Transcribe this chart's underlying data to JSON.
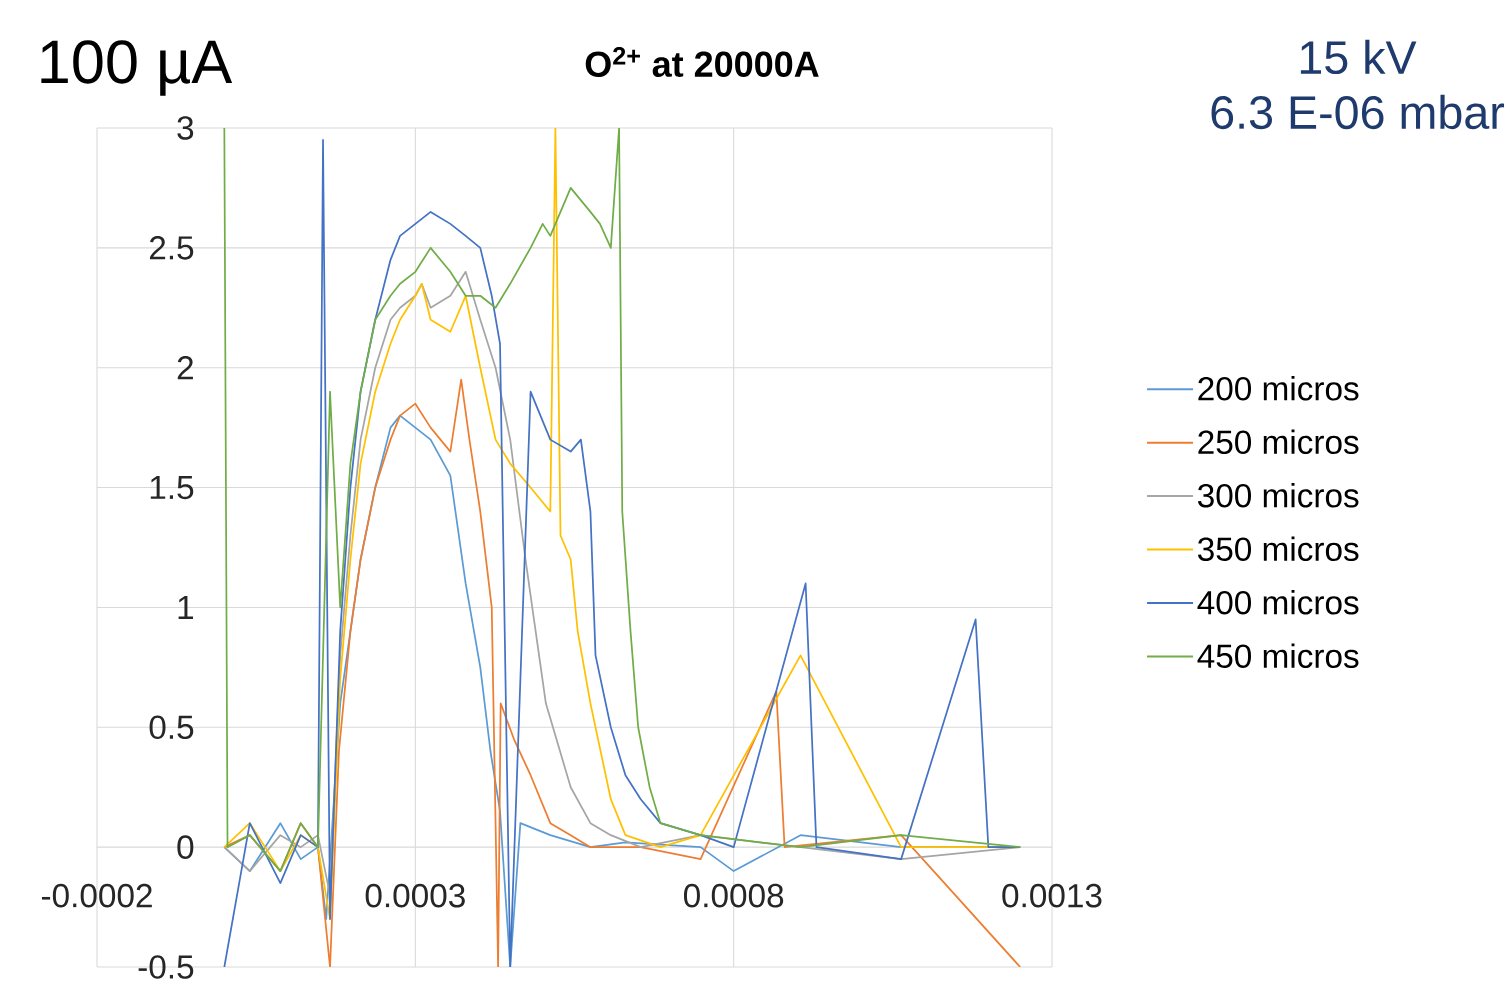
{
  "chart_data": {
    "type": "line",
    "title": "O$^{2+}$ at 20000A",
    "annotations": [
      "100 µA",
      "15 kV",
      "6.3 E-06 mbar"
    ],
    "xlim": [
      -0.0002,
      0.0013
    ],
    "xticks": [
      -0.0002,
      0.0003,
      0.0008,
      0.0013
    ],
    "ylim": [
      -0.5,
      3
    ],
    "yticks": [
      -0.5,
      0,
      0.5,
      1,
      1.5,
      2,
      2.5,
      3
    ],
    "grid": true,
    "legend": "right",
    "series": [
      {
        "name": "200 micros",
        "color": "#5b9bd5",
        "x": [
          0,
          4e-05,
          8.8e-05,
          0.00012,
          0.000147,
          0.00016,
          0.000182,
          0.000214,
          0.000237,
          0.000261,
          0.000276,
          0.0003,
          0.000324,
          0.000355,
          0.000379,
          0.000402,
          0.000418,
          0.000433,
          0.000449,
          0.000465,
          0.000512,
          0.000575,
          0.00063,
          0.000748,
          0.0008,
          0.000905,
          0.001063,
          0.00125
        ],
        "values": [
          0,
          -0.1,
          0.1,
          -0.05,
          0,
          -0.3,
          0.6,
          1.2,
          1.5,
          1.75,
          1.8,
          1.75,
          1.7,
          1.55,
          1.1,
          0.75,
          0.4,
          0.15,
          -0.5,
          0.1,
          0.05,
          0,
          0.02,
          0,
          -0.1,
          0.05,
          0,
          0
        ]
      },
      {
        "name": "250 micros",
        "color": "#ed7d31",
        "x": [
          0,
          4e-05,
          8.8e-05,
          0.00012,
          0.000147,
          0.000166,
          0.00018,
          0.000198,
          0.000214,
          0.000237,
          0.000261,
          0.000276,
          0.0003,
          0.000324,
          0.000355,
          0.000372,
          0.000385,
          0.000402,
          0.00042,
          0.00043,
          0.000434,
          0.000455,
          0.000481,
          0.000512,
          0.000544,
          0.000575,
          0.000654,
          0.000748,
          0.000867,
          0.00088,
          0.001063,
          0.00125
        ],
        "values": [
          0,
          0.05,
          -0.1,
          0.1,
          0,
          -0.5,
          0.4,
          0.9,
          1.2,
          1.5,
          1.7,
          1.8,
          1.85,
          1.75,
          1.65,
          1.95,
          1.7,
          1.4,
          1.0,
          -0.5,
          0.6,
          0.45,
          0.3,
          0.1,
          0.05,
          0,
          0,
          -0.05,
          0.65,
          0,
          0.05,
          -0.5
        ]
      },
      {
        "name": "300 micros",
        "color": "#a5a5a5",
        "x": [
          0,
          4e-05,
          8.8e-05,
          0.00012,
          0.000147,
          0.000166,
          0.000182,
          0.000198,
          0.000214,
          0.000237,
          0.000261,
          0.000276,
          0.0003,
          0.00031,
          0.000324,
          0.000355,
          0.000379,
          0.000402,
          0.000426,
          0.000449,
          0.000473,
          0.000505,
          0.000544,
          0.000575,
          0.000607,
          0.000654,
          0.000748,
          0.000905,
          0.001063,
          0.00125
        ],
        "values": [
          0,
          -0.1,
          0.05,
          0,
          0.05,
          -0.2,
          0.8,
          1.3,
          1.7,
          2.0,
          2.2,
          2.25,
          2.3,
          2.35,
          2.25,
          2.3,
          2.4,
          2.2,
          2.0,
          1.7,
          1.2,
          0.6,
          0.25,
          0.1,
          0.05,
          0,
          0.05,
          0,
          -0.05,
          0
        ]
      },
      {
        "name": "350 micros",
        "color": "#ffc000",
        "x": [
          0,
          4e-05,
          8.8e-05,
          0.00012,
          0.000147,
          0.000166,
          0.000182,
          0.000198,
          0.000214,
          0.000237,
          0.000261,
          0.000276,
          0.0003,
          0.00031,
          0.000324,
          0.000355,
          0.000379,
          0.000402,
          0.000426,
          0.000449,
          0.000481,
          0.000512,
          0.00052,
          0.000528,
          0.000544,
          0.000555,
          0.000575,
          0.000607,
          0.00063,
          0.000685,
          0.000748,
          0.000905,
          0.001063,
          0.00125
        ],
        "values": [
          0,
          0.1,
          -0.1,
          0.05,
          0,
          -0.3,
          0.7,
          1.2,
          1.6,
          1.9,
          2.1,
          2.2,
          2.3,
          2.35,
          2.2,
          2.15,
          2.3,
          2.0,
          1.7,
          1.6,
          1.5,
          1.4,
          3,
          1.3,
          1.2,
          0.9,
          0.6,
          0.2,
          0.05,
          0,
          0.05,
          0.8,
          0,
          0
        ]
      },
      {
        "name": "400 micros",
        "color": "#4472c4",
        "x": [
          0,
          4e-05,
          8.8e-05,
          0.00012,
          0.000147,
          0.000155,
          0.000166,
          0.000182,
          0.000198,
          0.000214,
          0.000237,
          0.000261,
          0.000276,
          0.0003,
          0.000324,
          0.000355,
          0.000379,
          0.000402,
          0.00042,
          0.000433,
          0.000449,
          0.000481,
          0.000512,
          0.000544,
          0.00056,
          0.000575,
          0.000583,
          0.000607,
          0.00063,
          0.000654,
          0.000685,
          0.000748,
          0.0008,
          0.000913,
          0.00093,
          0.001063,
          0.00118,
          0.0012,
          0.00125
        ],
        "values": [
          -0.5,
          0.1,
          -0.15,
          0.05,
          0,
          2.95,
          -0.3,
          0.9,
          1.5,
          1.9,
          2.2,
          2.45,
          2.55,
          2.6,
          2.65,
          2.6,
          2.55,
          2.5,
          2.3,
          2.1,
          -0.5,
          1.9,
          1.7,
          1.65,
          1.7,
          1.4,
          0.8,
          0.5,
          0.3,
          0.2,
          0.1,
          0.05,
          0,
          1.1,
          0,
          -0.05,
          0.95,
          0,
          0
        ]
      },
      {
        "name": "450 micros",
        "color": "#70ad47",
        "x": [
          0,
          5e-06,
          4e-05,
          8.8e-05,
          0.00012,
          0.000147,
          0.000166,
          0.000182,
          0.000198,
          0.000214,
          0.000237,
          0.000261,
          0.000276,
          0.0003,
          0.000324,
          0.000355,
          0.000379,
          0.000402,
          0.000426,
          0.000449,
          0.000481,
          0.0005,
          0.000512,
          0.000544,
          0.000575,
          0.00059,
          0.000607,
          0.00062,
          0.000625,
          0.000638,
          0.00065,
          0.000668,
          0.000685,
          0.000748,
          0.000905,
          0.001063,
          0.00125
        ],
        "values": [
          3,
          0,
          0.05,
          -0.1,
          0.1,
          0,
          1.9,
          1.0,
          1.6,
          1.9,
          2.2,
          2.3,
          2.35,
          2.4,
          2.5,
          2.4,
          2.3,
          2.3,
          2.25,
          2.35,
          2.5,
          2.6,
          2.55,
          2.75,
          2.65,
          2.6,
          2.5,
          3,
          1.4,
          0.9,
          0.5,
          0.25,
          0.1,
          0.05,
          0,
          0.05,
          0
        ]
      }
    ]
  }
}
